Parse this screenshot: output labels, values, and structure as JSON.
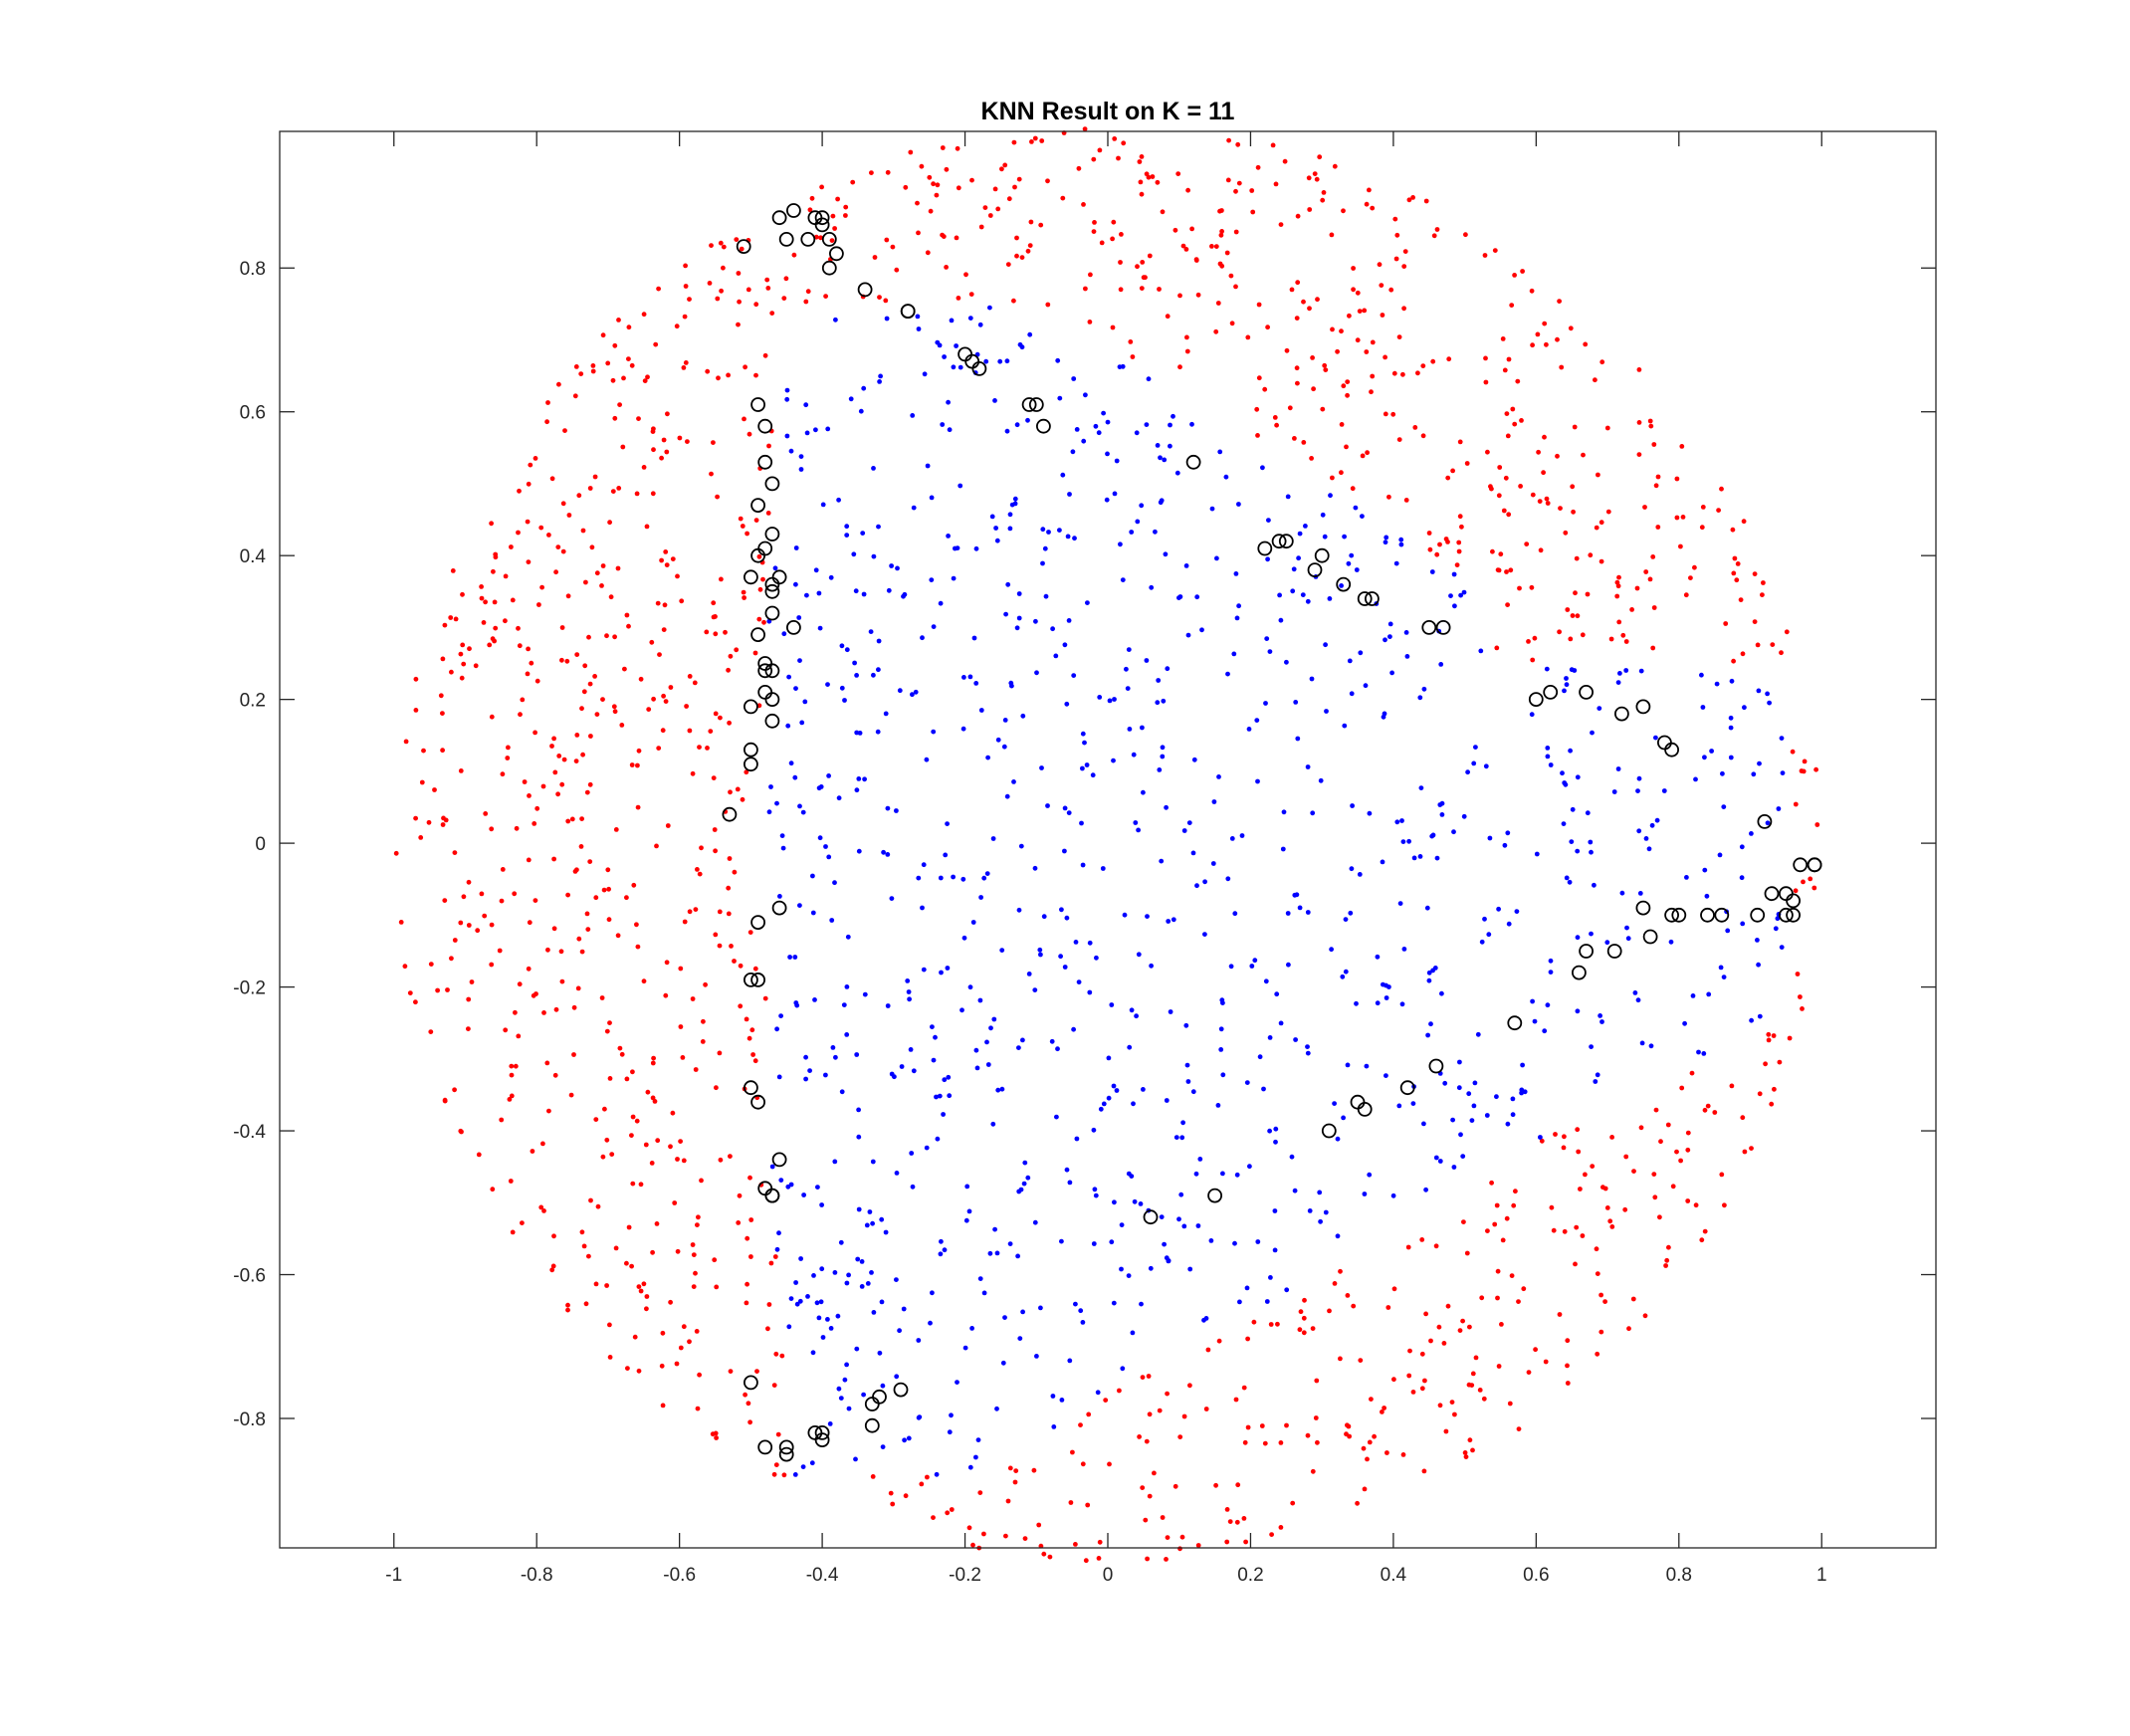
{
  "chart_data": {
    "type": "scatter",
    "title": "KNN Result on K = 11",
    "xlabel": "",
    "ylabel": "",
    "xlim": [
      -1.16,
      1.16
    ],
    "ylim": [
      -0.98,
      0.99
    ],
    "x_ticks": [
      -1,
      -0.8,
      -0.6,
      -0.4,
      -0.2,
      0,
      0.2,
      0.4,
      0.6,
      0.8,
      1
    ],
    "x_tick_labels": [
      "-1",
      "-0.8",
      "-0.6",
      "-0.4",
      "-0.2",
      "0",
      "0.2",
      "0.4",
      "0.6",
      "0.8",
      "1"
    ],
    "y_ticks": [
      -0.8,
      -0.6,
      -0.4,
      -0.2,
      0,
      0.2,
      0.4,
      0.6,
      0.8
    ],
    "y_tick_labels": [
      "-0.8",
      "-0.6",
      "-0.4",
      "-0.2",
      "0",
      "0.2",
      "0.4",
      "0.6",
      "0.8"
    ],
    "grid": false,
    "legend": "none",
    "colors": {
      "outer_class": "#ff0000",
      "inner_class": "#0000ff",
      "misclassified": "#000000",
      "axes": "#262626"
    },
    "point_cloud": {
      "red_point_count": 1200,
      "blue_point_count": 900
    },
    "series": [
      {
        "marker": "o",
        "values": [
          [
            -0.51,
            0.83
          ],
          [
            -0.46,
            0.87
          ],
          [
            -0.45,
            0.84
          ],
          [
            -0.44,
            0.88
          ],
          [
            -0.42,
            0.84
          ],
          [
            -0.41,
            0.87
          ],
          [
            -0.4,
            0.87
          ],
          [
            -0.4,
            0.86
          ],
          [
            -0.39,
            0.84
          ],
          [
            -0.38,
            0.82
          ],
          [
            -0.39,
            0.8
          ],
          [
            -0.34,
            0.77
          ],
          [
            -0.28,
            0.74
          ],
          [
            -0.2,
            0.68
          ],
          [
            -0.19,
            0.67
          ],
          [
            -0.18,
            0.66
          ],
          [
            -0.11,
            0.61
          ],
          [
            -0.1,
            0.61
          ],
          [
            -0.09,
            0.58
          ],
          [
            -0.49,
            0.61
          ],
          [
            -0.48,
            0.58
          ],
          [
            -0.48,
            0.53
          ],
          [
            -0.47,
            0.5
          ],
          [
            -0.49,
            0.47
          ],
          [
            -0.47,
            0.43
          ],
          [
            -0.48,
            0.41
          ],
          [
            -0.49,
            0.4
          ],
          [
            -0.5,
            0.37
          ],
          [
            -0.46,
            0.37
          ],
          [
            -0.47,
            0.36
          ],
          [
            -0.47,
            0.35
          ],
          [
            -0.47,
            0.32
          ],
          [
            -0.44,
            0.3
          ],
          [
            -0.49,
            0.29
          ],
          [
            -0.48,
            0.25
          ],
          [
            -0.48,
            0.24
          ],
          [
            -0.47,
            0.24
          ],
          [
            -0.48,
            0.21
          ],
          [
            -0.47,
            0.2
          ],
          [
            -0.5,
            0.19
          ],
          [
            -0.47,
            0.17
          ],
          [
            -0.5,
            0.13
          ],
          [
            -0.5,
            0.11
          ],
          [
            -0.53,
            0.04
          ],
          [
            -0.46,
            -0.09
          ],
          [
            -0.49,
            -0.11
          ],
          [
            -0.5,
            -0.19
          ],
          [
            -0.49,
            -0.19
          ],
          [
            -0.5,
            -0.34
          ],
          [
            -0.49,
            -0.36
          ],
          [
            -0.46,
            -0.44
          ],
          [
            -0.48,
            -0.48
          ],
          [
            -0.47,
            -0.49
          ],
          [
            -0.47,
            -0.49
          ],
          [
            -0.5,
            -0.75
          ],
          [
            -0.32,
            -0.77
          ],
          [
            -0.33,
            -0.78
          ],
          [
            -0.29,
            -0.76
          ],
          [
            -0.41,
            -0.82
          ],
          [
            -0.4,
            -0.82
          ],
          [
            -0.4,
            -0.83
          ],
          [
            -0.33,
            -0.81
          ],
          [
            -0.48,
            -0.84
          ],
          [
            -0.45,
            -0.84
          ],
          [
            -0.45,
            -0.85
          ],
          [
            0.06,
            -0.52
          ],
          [
            0.15,
            -0.49
          ],
          [
            0.31,
            -0.4
          ],
          [
            0.35,
            -0.36
          ],
          [
            0.36,
            -0.37
          ],
          [
            0.42,
            -0.34
          ],
          [
            0.46,
            -0.31
          ],
          [
            0.57,
            -0.25
          ],
          [
            0.66,
            -0.18
          ],
          [
            0.67,
            -0.15
          ],
          [
            0.71,
            -0.15
          ],
          [
            0.75,
            -0.09
          ],
          [
            0.76,
            -0.13
          ],
          [
            0.79,
            -0.1
          ],
          [
            0.8,
            -0.1
          ],
          [
            0.84,
            -0.1
          ],
          [
            0.86,
            -0.1
          ],
          [
            0.91,
            -0.1
          ],
          [
            0.93,
            -0.07
          ],
          [
            0.95,
            -0.07
          ],
          [
            0.95,
            -0.1
          ],
          [
            0.96,
            -0.1
          ],
          [
            0.96,
            -0.08
          ],
          [
            0.97,
            -0.03
          ],
          [
            0.99,
            -0.03
          ],
          [
            0.99,
            -0.03
          ],
          [
            0.92,
            0.03
          ],
          [
            0.78,
            0.14
          ],
          [
            0.79,
            0.13
          ],
          [
            0.72,
            0.18
          ],
          [
            0.75,
            0.19
          ],
          [
            0.67,
            0.21
          ],
          [
            0.6,
            0.2
          ],
          [
            0.62,
            0.21
          ],
          [
            0.45,
            0.3
          ],
          [
            0.47,
            0.3
          ],
          [
            0.33,
            0.36
          ],
          [
            0.36,
            0.34
          ],
          [
            0.37,
            0.34
          ],
          [
            0.29,
            0.38
          ],
          [
            0.3,
            0.4
          ],
          [
            0.22,
            0.41
          ],
          [
            0.24,
            0.42
          ],
          [
            0.25,
            0.42
          ],
          [
            0.12,
            0.53
          ],
          [
            -0.28,
            0.74
          ]
        ]
      }
    ]
  }
}
